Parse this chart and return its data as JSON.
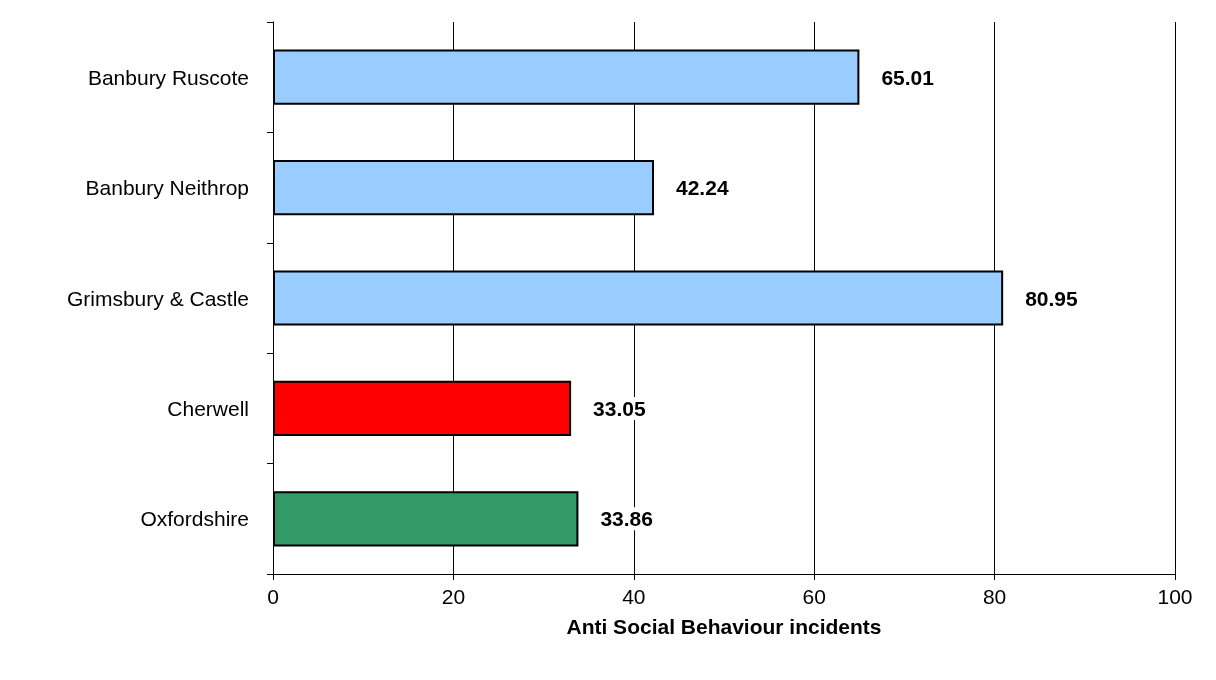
{
  "chart_data": {
    "type": "bar",
    "orientation": "horizontal",
    "xlabel": "Anti Social Behaviour incidents",
    "categories": [
      "Banbury Ruscote",
      "Banbury Neithrop",
      "Grimsbury & Castle",
      "Cherwell",
      "Oxfordshire"
    ],
    "values": [
      65.01,
      42.24,
      80.95,
      33.05,
      33.86
    ],
    "colors": [
      "#99ccff",
      "#99ccff",
      "#99ccff",
      "#ff0000",
      "#339966"
    ],
    "xlim": [
      0,
      100
    ],
    "xticks": [
      0,
      20,
      40,
      60,
      80,
      100
    ],
    "grid": "x",
    "data_labels": true
  }
}
